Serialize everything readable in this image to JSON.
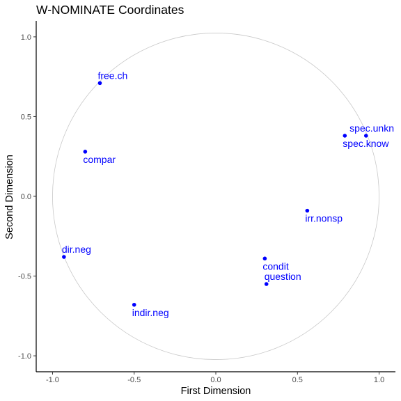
{
  "chart_data": {
    "type": "scatter",
    "title": "W-NOMINATE Coordinates",
    "xlabel": "First Dimension",
    "ylabel": "Second Dimension",
    "xlim": [
      -1.1,
      1.1
    ],
    "ylim": [
      -1.1,
      1.1
    ],
    "xticks": [
      -1.0,
      -0.5,
      0.0,
      0.5,
      1.0
    ],
    "yticks": [
      -1.0,
      -0.5,
      0.0,
      0.5,
      1.0
    ],
    "xtick_labels": [
      "-1.0",
      "-0.5",
      "0.0",
      "0.5",
      "1.0"
    ],
    "ytick_labels": [
      "-1.0",
      "-0.5",
      "0.0",
      "0.5",
      "1.0"
    ],
    "grid": false,
    "unit_circle": true,
    "point_color": "#0000ff",
    "circle_color": "#c8c8c8",
    "points": [
      {
        "label": "free.ch",
        "x": -0.71,
        "y": 0.71,
        "label_side": "above"
      },
      {
        "label": "compar",
        "x": -0.8,
        "y": 0.28,
        "label_side": "below"
      },
      {
        "label": "spec.unkn",
        "x": 0.92,
        "y": 0.38,
        "label_side": "above"
      },
      {
        "label": "spec.know",
        "x": 0.79,
        "y": 0.38,
        "label_side": "below"
      },
      {
        "label": "irr.nonsp",
        "x": 0.56,
        "y": -0.09,
        "label_side": "below"
      },
      {
        "label": "dir.neg",
        "x": -0.93,
        "y": -0.38,
        "label_side": "above"
      },
      {
        "label": "condit",
        "x": 0.3,
        "y": -0.39,
        "label_side": "below"
      },
      {
        "label": "question",
        "x": 0.31,
        "y": -0.55,
        "label_side": "above"
      },
      {
        "label": "indir.neg",
        "x": -0.5,
        "y": -0.68,
        "label_side": "below"
      }
    ]
  }
}
